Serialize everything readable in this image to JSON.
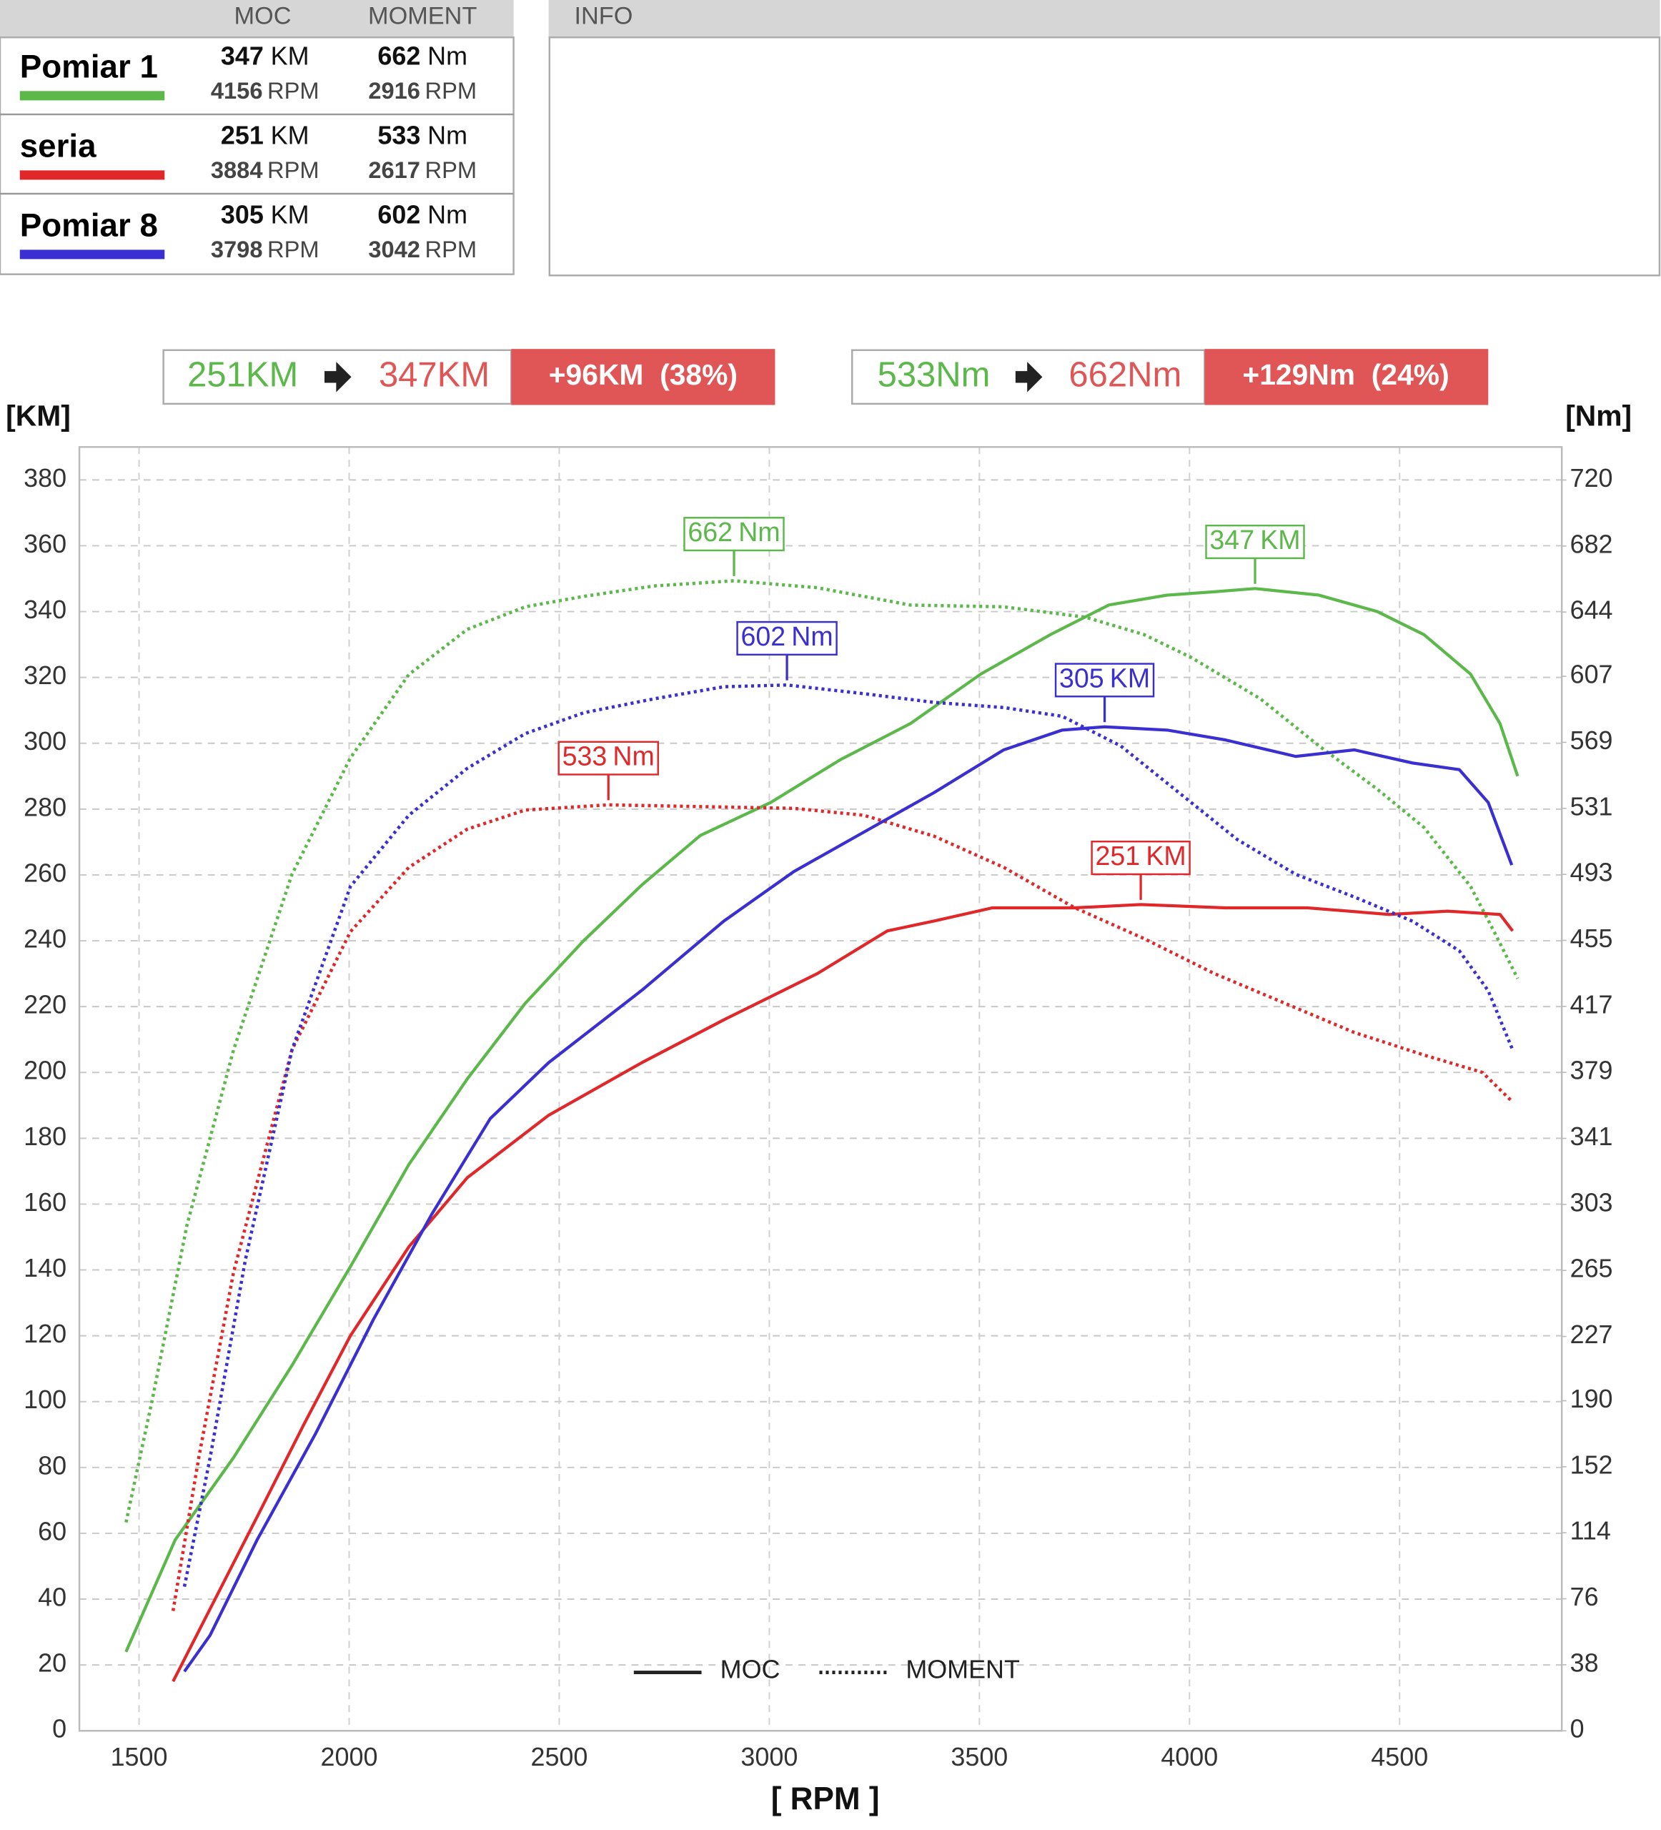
{
  "header": {
    "power": "MOC",
    "torque": "MOMENT",
    "info": "INFO"
  },
  "units": {
    "power": "KM",
    "torque": "Nm",
    "rpm": "RPM"
  },
  "comparison": [
    {
      "from": "251KM",
      "to": "347KM",
      "delta": "+96KM  (38%)"
    },
    {
      "from": "533Nm",
      "to": "662Nm",
      "delta": "+129Nm  (24%)"
    }
  ],
  "chart_data": {
    "type": "line",
    "xlabel": "[ RPM ]",
    "ylabel": "[KM]",
    "y2label": "[Nm]",
    "xlim": [
      1358,
      4886
    ],
    "xticks": [
      1500,
      2000,
      2500,
      3000,
      3500,
      4000,
      4500
    ],
    "ylim": [
      0,
      390
    ],
    "yticks": [
      0,
      20,
      40,
      60,
      80,
      100,
      120,
      140,
      160,
      180,
      200,
      220,
      240,
      260,
      280,
      300,
      320,
      340,
      360,
      380
    ],
    "y2lim": [
      0,
      739
    ],
    "y2ticks": [
      0,
      38,
      76,
      114,
      152,
      190,
      227,
      265,
      303,
      341,
      379,
      417,
      455,
      493,
      531,
      569,
      607,
      644,
      682,
      720
    ],
    "grid": true,
    "legend": [
      {
        "label": "MOC",
        "style": "solid"
      },
      {
        "label": "MOMENT",
        "style": "dotted"
      }
    ],
    "series": [
      {
        "name": "Pomiar 1",
        "color": "#5cb84a",
        "power_x": [
          1469,
          1586,
          1725,
          1864,
          2003,
          2142,
          2281,
          2419,
          2558,
          2697,
          2836,
          3003,
          3169,
          3336,
          3503,
          3669,
          3808,
          3947,
          4058,
          4156,
          4308,
          4447,
          4558,
          4669,
          4739,
          4781
        ],
        "power": [
          24,
          58,
          83,
          111,
          141,
          172,
          198,
          221,
          240,
          257,
          272,
          282,
          295,
          306,
          321,
          333,
          342,
          345,
          346,
          347,
          345,
          340,
          333,
          321,
          306,
          290
        ],
        "torque_x": [
          1469,
          1531,
          1614,
          1725,
          1864,
          2003,
          2142,
          2281,
          2419,
          2558,
          2725,
          2916,
          3114,
          3336,
          3558,
          3753,
          3892,
          4003,
          4169,
          4308,
          4447,
          4558,
          4669,
          4725,
          4781
        ],
        "torque": [
          120,
          190,
          291,
          392,
          493,
          560,
          608,
          634,
          647,
          653,
          659,
          662,
          658,
          648,
          647,
          641,
          631,
          618,
          594,
          567,
          542,
          520,
          486,
          460,
          433
        ],
        "power_peak": {
          "x": 4156,
          "value": 347
        },
        "torque_peak": {
          "x": 2916,
          "value": 662
        }
      },
      {
        "name": "seria",
        "color": "#e0282a",
        "power_x": [
          1581,
          1669,
          1781,
          1892,
          2003,
          2142,
          2281,
          2475,
          2697,
          2892,
          3114,
          3281,
          3392,
          3531,
          3725,
          3884,
          4086,
          4281,
          4475,
          4614,
          4739,
          4769
        ],
        "power": [
          15,
          37,
          65,
          93,
          120,
          147,
          168,
          187,
          203,
          216,
          230,
          243,
          246,
          250,
          250,
          251,
          250,
          250,
          248,
          249,
          248,
          243
        ],
        "torque_x": [
          1581,
          1642,
          1725,
          1864,
          2003,
          2142,
          2281,
          2419,
          2617,
          2836,
          3058,
          3225,
          3392,
          3558,
          3725,
          3892,
          4058,
          4225,
          4392,
          4558,
          4697,
          4769
        ],
        "torque": [
          69,
          157,
          264,
          392,
          460,
          497,
          519,
          530,
          533,
          532,
          531,
          527,
          515,
          497,
          474,
          456,
          436,
          419,
          402,
          389,
          379,
          362
        ],
        "power_peak": {
          "x": 3884,
          "value": 251
        },
        "torque_peak": {
          "x": 2617,
          "value": 533
        }
      },
      {
        "name": "Pomiar 8",
        "color": "#3a2fd0",
        "power_x": [
          1608,
          1669,
          1781,
          1919,
          2058,
          2197,
          2336,
          2475,
          2697,
          2892,
          3058,
          3225,
          3392,
          3558,
          3697,
          3798,
          3947,
          4086,
          4253,
          4392,
          4531,
          4642,
          4711,
          4767
        ],
        "power": [
          18,
          29,
          58,
          90,
          125,
          157,
          186,
          203,
          225,
          246,
          261,
          273,
          285,
          298,
          304,
          305,
          304,
          301,
          296,
          298,
          294,
          292,
          282,
          263
        ],
        "torque_x": [
          1608,
          1669,
          1753,
          1864,
          2003,
          2142,
          2281,
          2419,
          2558,
          2725,
          2892,
          3042,
          3225,
          3392,
          3558,
          3697,
          3836,
          3975,
          4114,
          4253,
          4392,
          4531,
          4642,
          4711,
          4769
        ],
        "torque": [
          83,
          157,
          271,
          392,
          486,
          527,
          554,
          574,
          586,
          594,
          601,
          602,
          597,
          592,
          589,
          584,
          567,
          540,
          513,
          493,
          480,
          466,
          449,
          426,
          392
        ],
        "power_peak": {
          "x": 3798,
          "value": 305
        },
        "torque_peak": {
          "x": 3042,
          "value": 602
        }
      }
    ]
  }
}
